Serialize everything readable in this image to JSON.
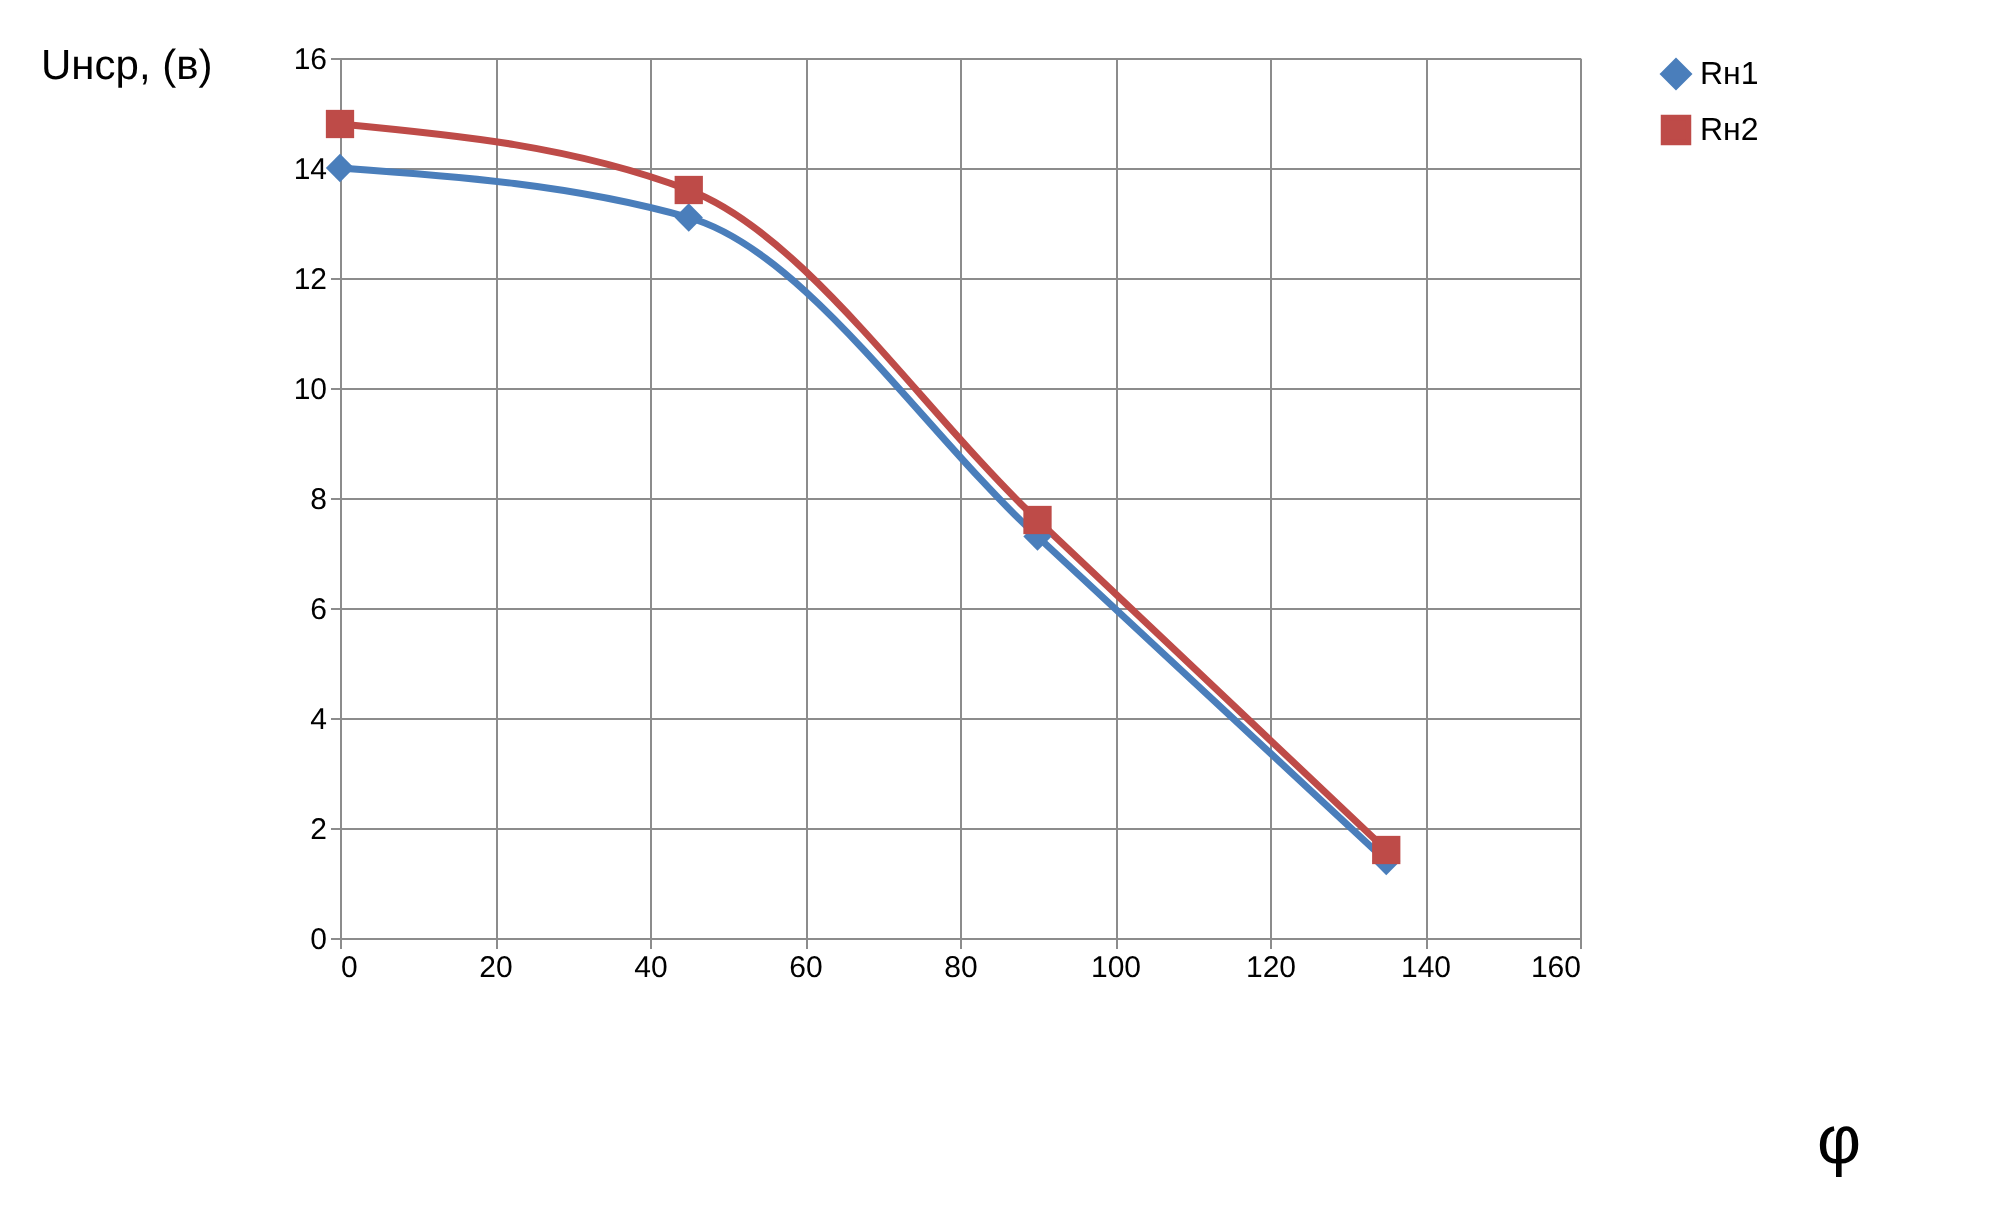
{
  "chart_data": {
    "type": "line",
    "xlabel": "φ",
    "ylabel": "Uнср, (в)",
    "x": [
      0,
      45,
      90,
      135
    ],
    "series": [
      {
        "name": "Rн1",
        "color": "#4a7ebb",
        "values": [
          14.0,
          13.1,
          7.3,
          1.4
        ],
        "marker": "diamond"
      },
      {
        "name": "Rн2",
        "color": "#be4b48",
        "values": [
          14.8,
          13.6,
          7.6,
          1.6
        ],
        "marker": "square"
      }
    ],
    "xlim": [
      0,
      160
    ],
    "xticks": [
      0,
      20,
      40,
      60,
      80,
      100,
      120,
      140,
      160
    ],
    "ylim": [
      0,
      16
    ],
    "yticks": [
      0,
      2,
      4,
      6,
      8,
      10,
      12,
      14,
      16
    ],
    "grid": true,
    "legend": "right",
    "line_style": "solid"
  }
}
